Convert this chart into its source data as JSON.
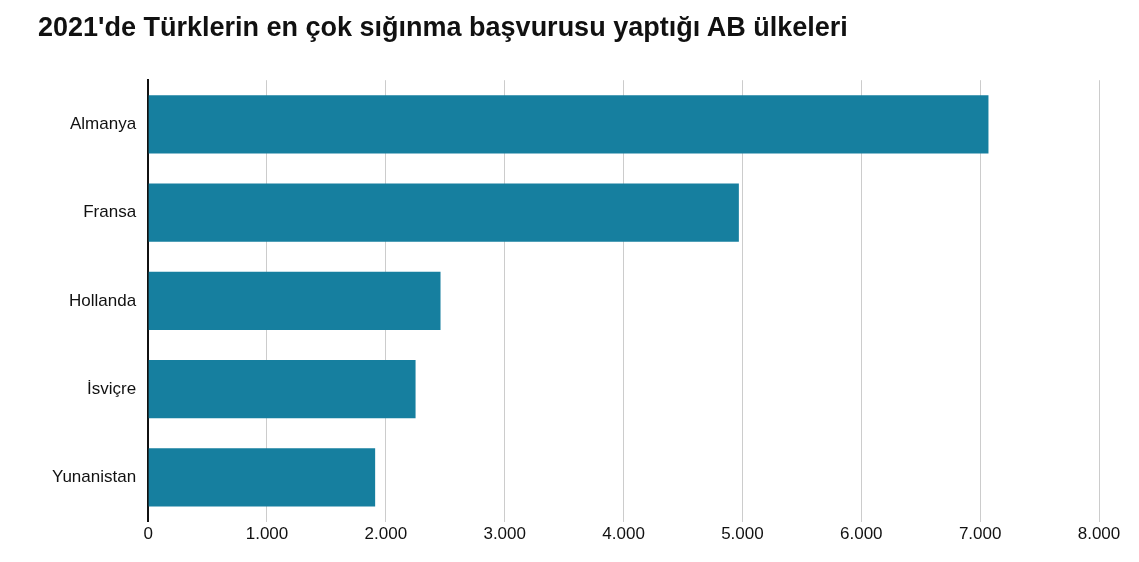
{
  "chart_data": {
    "type": "bar",
    "orientation": "horizontal",
    "title": "2021'de Türklerin en çok sığınma başvurusu yaptığı AB ülkeleri",
    "categories": [
      "Almanya",
      "Fransa",
      "Hollanda",
      "İsviçre",
      "Yunanistan"
    ],
    "values": [
      7070,
      4970,
      2460,
      2250,
      1910
    ],
    "color": "#167f9f",
    "xlim": [
      0,
      8000
    ],
    "xticks": [
      0,
      {
        "value": 1000,
        "label": "1.000"
      },
      {
        "value": 2000,
        "label": "2.000"
      },
      {
        "value": 3000,
        "label": "3.000"
      },
      {
        "value": 4000,
        "label": "4.000"
      },
      {
        "value": 5000,
        "label": "5.000"
      },
      {
        "value": 6000,
        "label": "6.000"
      },
      {
        "value": 7000,
        "label": "7.000"
      },
      {
        "value": 8000,
        "label": "8.000"
      }
    ],
    "grid": "x",
    "legend": false
  }
}
